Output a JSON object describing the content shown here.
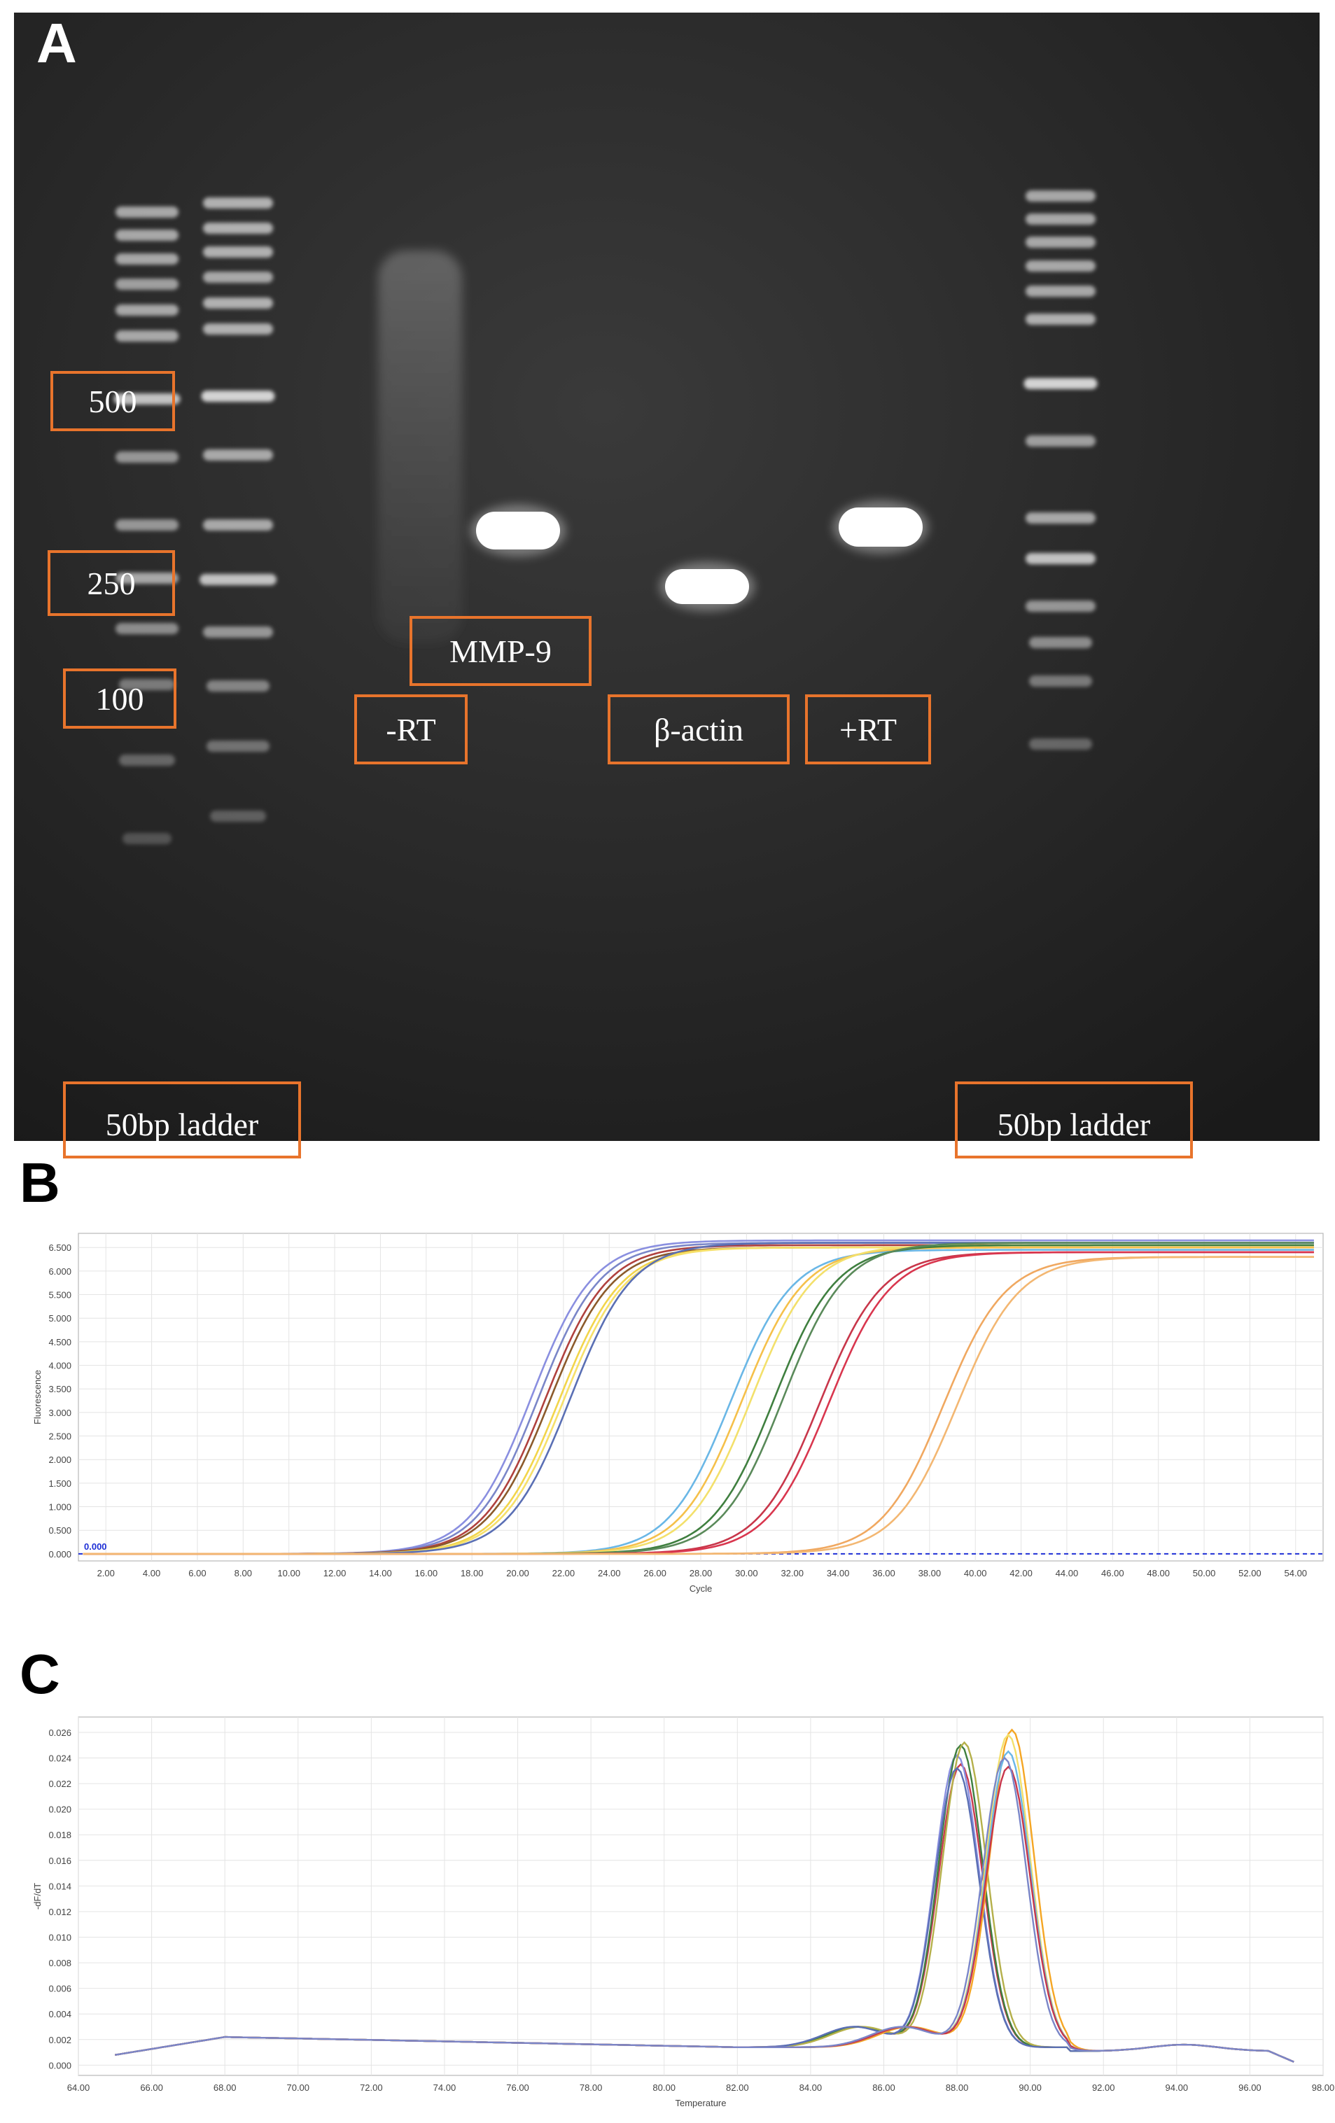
{
  "panels": {
    "a": "A",
    "b": "B",
    "c": "C"
  },
  "gel": {
    "labels": {
      "l500": "500",
      "l250": "250",
      "l100": "100",
      "mmp9": "MMP-9",
      "minus_rt": "-RT",
      "bactin": "β-actin",
      "plus_rt": "+RT",
      "ladder_left": "50bp ladder",
      "ladder_right": "50bp ladder"
    },
    "label_color": "#e8742c"
  },
  "chart_data": [
    {
      "type": "line",
      "panel": "B",
      "xlabel": "Cycle",
      "ylabel": "Fluorescence",
      "xlim": [
        0.8,
        55.2
      ],
      "ylim": [
        -0.15,
        6.8
      ],
      "x_ticks": [
        "2.00",
        "4.00",
        "6.00",
        "8.00",
        "10.00",
        "12.00",
        "14.00",
        "16.00",
        "18.00",
        "20.00",
        "22.00",
        "24.00",
        "26.00",
        "28.00",
        "30.00",
        "32.00",
        "34.00",
        "36.00",
        "38.00",
        "40.00",
        "42.00",
        "44.00",
        "46.00",
        "48.00",
        "50.00",
        "52.00",
        "54.00"
      ],
      "y_ticks": [
        "0.000",
        "0.500",
        "1.000",
        "1.500",
        "2.000",
        "2.500",
        "3.000",
        "3.500",
        "4.000",
        "4.500",
        "5.000",
        "5.500",
        "6.000",
        "6.500"
      ],
      "threshold": {
        "value": 0.0,
        "label": "0.000"
      },
      "grid": true,
      "series": [
        {
          "color": "#8a8fe0",
          "midpoint": 20.6,
          "plateau": 6.65
        },
        {
          "color": "#7a86c8",
          "midpoint": 20.9,
          "plateau": 6.6
        },
        {
          "color": "#b0413e",
          "midpoint": 21.2,
          "plateau": 6.55
        },
        {
          "color": "#8b5a2b",
          "midpoint": 21.4,
          "plateau": 6.5
        },
        {
          "color": "#f2d54a",
          "midpoint": 21.8,
          "plateau": 6.5
        },
        {
          "color": "#f6e06a",
          "midpoint": 22.0,
          "plateau": 6.5
        },
        {
          "color": "#5a6fb4",
          "midpoint": 22.3,
          "plateau": 6.6
        },
        {
          "color": "#6ab7e6",
          "midpoint": 29.3,
          "plateau": 6.45
        },
        {
          "color": "#f5c04a",
          "midpoint": 29.8,
          "plateau": 6.5
        },
        {
          "color": "#f3e06b",
          "midpoint": 30.2,
          "plateau": 6.55
        },
        {
          "color": "#3f7f3f",
          "midpoint": 31.2,
          "plateau": 6.55
        },
        {
          "color": "#5a8a5a",
          "midpoint": 31.6,
          "plateau": 6.6
        },
        {
          "color": "#c8364a",
          "midpoint": 33.2,
          "plateau": 6.4
        },
        {
          "color": "#d9364e",
          "midpoint": 33.6,
          "plateau": 6.4
        },
        {
          "color": "#f0a860",
          "midpoint": 38.6,
          "plateau": 6.3
        },
        {
          "color": "#f3b772",
          "midpoint": 39.2,
          "plateau": 6.3
        }
      ]
    },
    {
      "type": "line",
      "panel": "C",
      "xlabel": "Temperature",
      "ylabel": "-dF/dT",
      "xlim": [
        64.0,
        98.0
      ],
      "ylim": [
        -0.0008,
        0.0272
      ],
      "x_ticks": [
        "64.00",
        "66.00",
        "68.00",
        "70.00",
        "72.00",
        "74.00",
        "76.00",
        "78.00",
        "80.00",
        "82.00",
        "84.00",
        "86.00",
        "88.00",
        "90.00",
        "92.00",
        "94.00",
        "96.00",
        "98.00"
      ],
      "y_ticks": [
        "0.000",
        "0.002",
        "0.004",
        "0.006",
        "0.008",
        "0.010",
        "0.012",
        "0.014",
        "0.016",
        "0.018",
        "0.020",
        "0.022",
        "0.024",
        "0.026"
      ],
      "grid": true,
      "series": [
        {
          "color": "#c9394f",
          "peak_x": 88.1,
          "peak_y": 0.0235
        },
        {
          "color": "#8a8fe0",
          "peak_x": 88.0,
          "peak_y": 0.0242
        },
        {
          "color": "#3f7f3f",
          "peak_x": 88.1,
          "peak_y": 0.025
        },
        {
          "color": "#b5b04a",
          "peak_x": 88.2,
          "peak_y": 0.0252
        },
        {
          "color": "#5a6fb4",
          "peak_x": 88.0,
          "peak_y": 0.0232
        },
        {
          "color": "#f5a623",
          "peak_x": 89.5,
          "peak_y": 0.0262
        },
        {
          "color": "#f3e06b",
          "peak_x": 89.4,
          "peak_y": 0.0258
        },
        {
          "color": "#6ab7e6",
          "peak_x": 89.4,
          "peak_y": 0.0245
        },
        {
          "color": "#c8364a",
          "peak_x": 89.4,
          "peak_y": 0.0233
        },
        {
          "color": "#7a86c8",
          "peak_x": 89.3,
          "peak_y": 0.024
        }
      ]
    }
  ]
}
